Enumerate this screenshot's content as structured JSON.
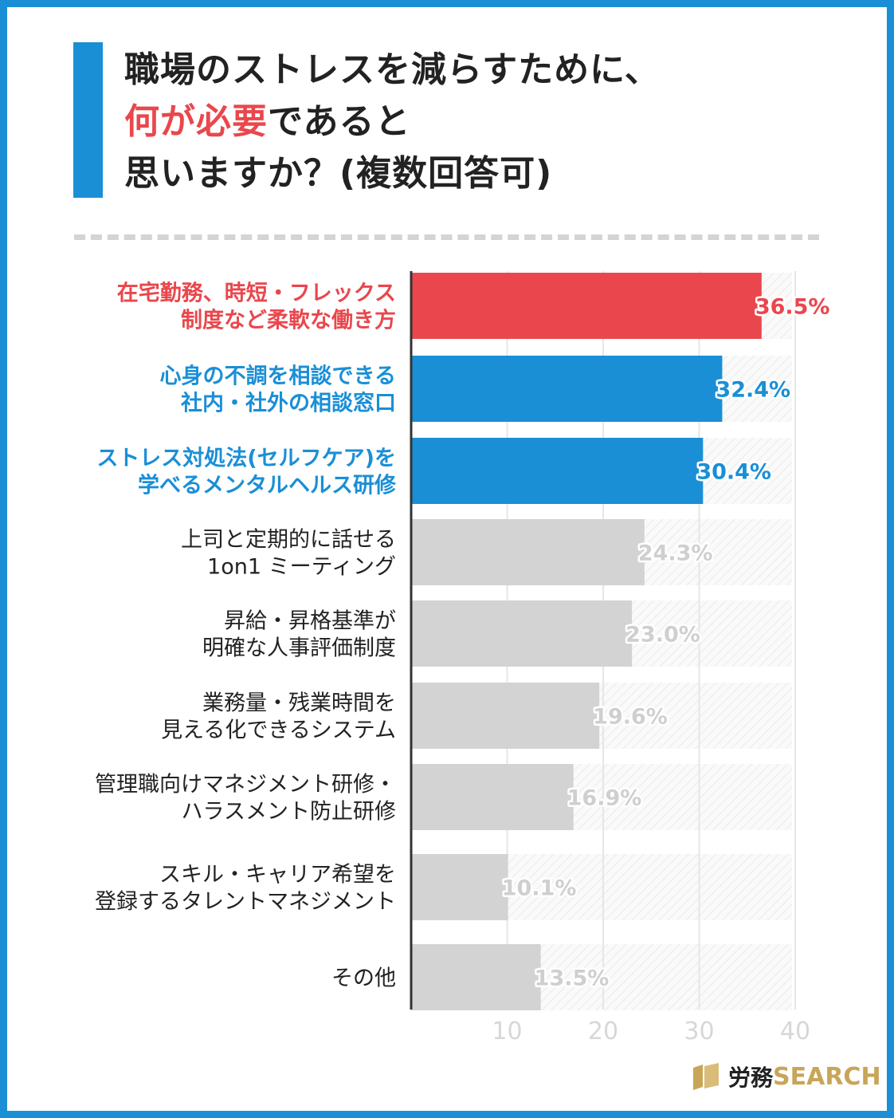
{
  "title": {
    "line1": "職場のストレスを減らすために、",
    "line2_highlight": "何が必要",
    "line2_rest": "であると",
    "line3": "思いますか？(複数回答可)"
  },
  "colors": {
    "frame": "#1a8fd6",
    "highlight_red": "#e9474d",
    "highlight_blue": "#1a8fd6",
    "bar_gray": "#d3d3d3",
    "text_dark": "#222222",
    "logo_gold": "#c8a557"
  },
  "logo": {
    "jp": "労務",
    "en": "SEARCH"
  },
  "chart_data": {
    "type": "bar",
    "orientation": "horizontal",
    "categories": [
      [
        "在宅勤務、時短・フレックス",
        "制度など柔軟な働き方"
      ],
      [
        "心身の不調を相談できる",
        "社内・社外の相談窓口"
      ],
      [
        "ストレス対処法(セルフケア)を",
        "学べるメンタルヘルス研修"
      ],
      [
        "上司と定期的に話せる",
        "1on1 ミーティング"
      ],
      [
        "昇給・昇格基準が",
        "明確な人事評価制度"
      ],
      [
        "業務量・残業時間を",
        "見える化できるシステム"
      ],
      [
        "管理職向けマネジメント研修・",
        "ハラスメント防止研修"
      ],
      [
        "スキル・キャリア希望を",
        "登録するタレントマネジメント"
      ],
      [
        "その他"
      ]
    ],
    "values": [
      36.5,
      32.4,
      30.4,
      24.3,
      23.0,
      19.6,
      16.9,
      10.1,
      13.5
    ],
    "value_labels": [
      "36.5%",
      "32.4%",
      "30.4%",
      "24.3%",
      "23.0%",
      "19.6%",
      "16.9%",
      "10.1%",
      "13.5%"
    ],
    "highlight": [
      "red",
      "blue",
      "blue",
      "gray",
      "gray",
      "gray",
      "gray",
      "gray",
      "gray"
    ],
    "xlim": [
      0,
      40
    ],
    "xticks": [
      "10",
      "20",
      "30",
      "40"
    ],
    "grid": true
  }
}
